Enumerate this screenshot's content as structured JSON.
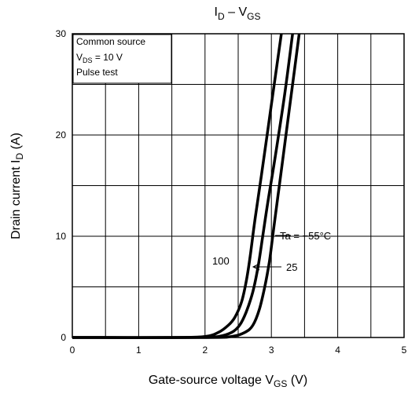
{
  "chart_data": {
    "type": "line",
    "title": {
      "main": "I",
      "main_sub": "D",
      "sep": " – V",
      "sep_sub": "GS"
    },
    "xlabel": {
      "text": "Gate-source voltage   V",
      "sub": "GS",
      "unit": "   (V)"
    },
    "ylabel": {
      "text": "Drain current   I",
      "sub": "D",
      "unit": "   (A)"
    },
    "xlim": [
      0,
      5
    ],
    "ylim": [
      0,
      30
    ],
    "x_ticks": [
      "0",
      "1",
      "2",
      "3",
      "4",
      "5"
    ],
    "y_ticks": [
      "0",
      "10",
      "20",
      "30"
    ],
    "grid": true,
    "conditions": {
      "line1": "Common source",
      "line2_prefix": "V",
      "line2_sub": "DS",
      "line2_suffix": " = 10 V",
      "line3": "Pulse test"
    },
    "series": [
      {
        "name": "100",
        "x": [
          0,
          1.5,
          2.0,
          2.2,
          2.35,
          2.45,
          2.55,
          2.62,
          2.68,
          2.75,
          2.85,
          3.0,
          3.15
        ],
        "y": [
          0,
          0,
          0.1,
          0.5,
          1.2,
          2.0,
          3.5,
          5.5,
          8.0,
          11.5,
          16.0,
          23.0,
          30.0
        ]
      },
      {
        "name": "25",
        "x": [
          0,
          1.8,
          2.2,
          2.4,
          2.52,
          2.62,
          2.72,
          2.8,
          2.87,
          2.95,
          3.05,
          3.2,
          3.32
        ],
        "y": [
          0,
          0,
          0.1,
          0.5,
          1.2,
          2.5,
          4.5,
          7.0,
          10.0,
          13.5,
          17.5,
          24.0,
          30.0
        ]
      },
      {
        "name": "-55",
        "x": [
          0,
          2.0,
          2.4,
          2.6,
          2.72,
          2.82,
          2.9,
          2.97,
          3.03,
          3.1,
          3.18,
          3.3,
          3.42
        ],
        "y": [
          0,
          0,
          0.1,
          0.5,
          1.2,
          2.8,
          5.0,
          7.5,
          10.5,
          14.0,
          18.0,
          24.0,
          30.0
        ]
      }
    ],
    "annotations": {
      "ta_label": "Ta = −55°C",
      "label_25": "25",
      "label_100": "100"
    }
  }
}
